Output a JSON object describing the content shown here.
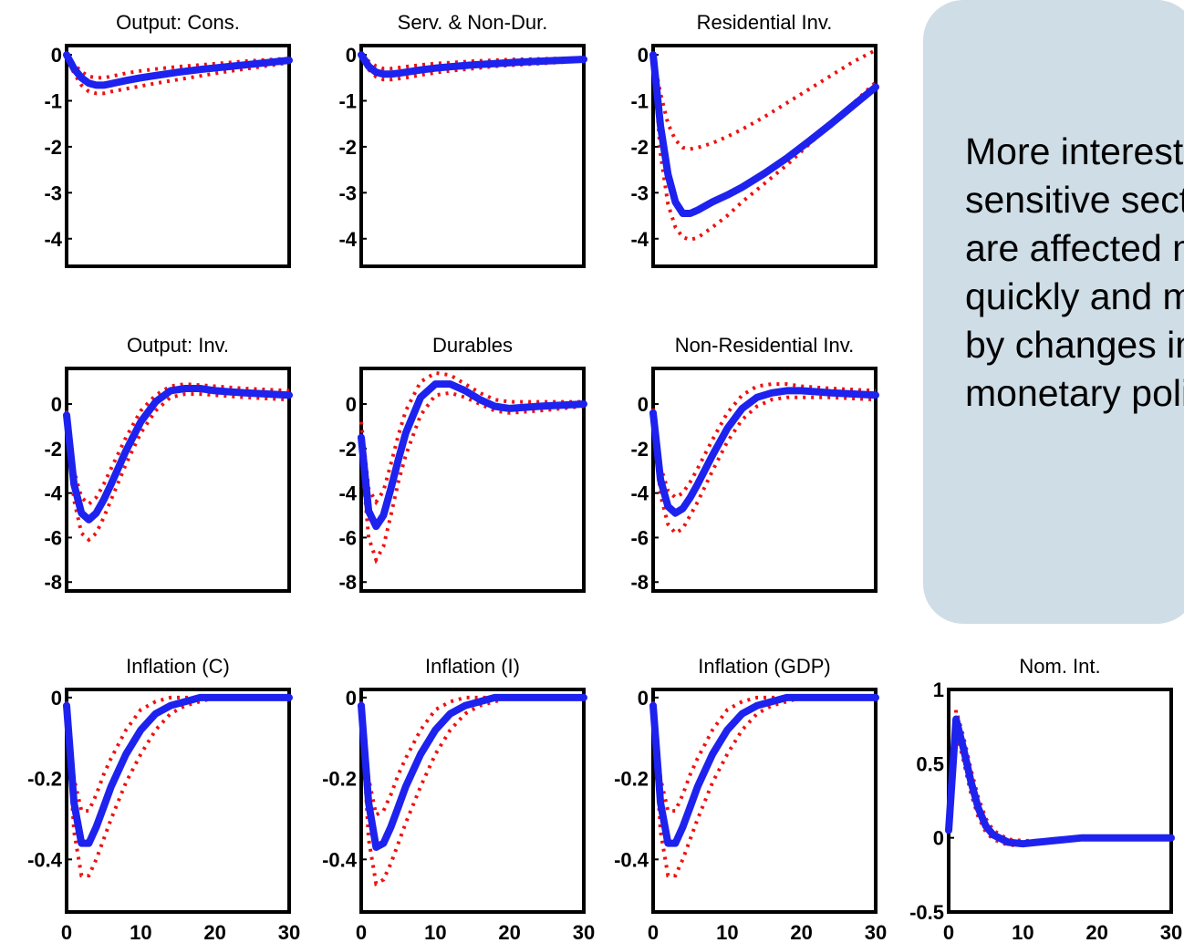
{
  "chart_data": [
    {
      "title": "Output: Cons.",
      "type": "line",
      "ylim": [
        -4.6,
        0.2
      ],
      "yticks": [
        0,
        -1,
        -2,
        -3,
        -4
      ],
      "ytick_labels": [
        "0",
        "-1",
        "-2",
        "-3",
        "-4"
      ],
      "xlim": [
        0,
        30
      ],
      "x": [
        0,
        1,
        2,
        3,
        4,
        5,
        6,
        8,
        10,
        12,
        15,
        18,
        21,
        24,
        27,
        30
      ],
      "series": [
        {
          "values": [
            0,
            -0.3,
            -0.5,
            -0.62,
            -0.66,
            -0.66,
            -0.63,
            -0.56,
            -0.5,
            -0.45,
            -0.38,
            -0.32,
            -0.27,
            -0.22,
            -0.17,
            -0.12
          ]
        },
        {
          "values": [
            0,
            -0.2,
            -0.37,
            -0.47,
            -0.5,
            -0.5,
            -0.47,
            -0.4,
            -0.35,
            -0.31,
            -0.26,
            -0.22,
            -0.18,
            -0.14,
            -0.11,
            -0.08
          ]
        },
        {
          "values": [
            0,
            -0.4,
            -0.66,
            -0.8,
            -0.84,
            -0.84,
            -0.8,
            -0.74,
            -0.68,
            -0.62,
            -0.54,
            -0.46,
            -0.38,
            -0.31,
            -0.24,
            -0.17
          ]
        }
      ]
    },
    {
      "title": "Serv. & Non-Dur.",
      "type": "line",
      "ylim": [
        -4.6,
        0.2
      ],
      "yticks": [
        0,
        -1,
        -2,
        -3,
        -4
      ],
      "ytick_labels": [
        "0",
        "-1",
        "-2",
        "-3",
        "-4"
      ],
      "xlim": [
        0,
        30
      ],
      "x": [
        0,
        1,
        2,
        3,
        4,
        5,
        6,
        8,
        10,
        12,
        15,
        18,
        21,
        24,
        27,
        30
      ],
      "series": [
        {
          "values": [
            0,
            -0.25,
            -0.38,
            -0.42,
            -0.42,
            -0.4,
            -0.38,
            -0.33,
            -0.29,
            -0.26,
            -0.22,
            -0.19,
            -0.16,
            -0.14,
            -0.12,
            -0.1
          ]
        },
        {
          "values": [
            0,
            -0.14,
            -0.25,
            -0.3,
            -0.3,
            -0.28,
            -0.26,
            -0.22,
            -0.19,
            -0.17,
            -0.14,
            -0.12,
            -0.1,
            -0.09,
            -0.08,
            -0.07
          ]
        },
        {
          "values": [
            0,
            -0.32,
            -0.48,
            -0.54,
            -0.54,
            -0.52,
            -0.5,
            -0.44,
            -0.39,
            -0.35,
            -0.3,
            -0.25,
            -0.22,
            -0.19,
            -0.16,
            -0.13
          ]
        }
      ]
    },
    {
      "title": "Residential Inv.",
      "type": "line",
      "ylim": [
        -4.6,
        0.2
      ],
      "yticks": [
        0,
        -1,
        -2,
        -3,
        -4
      ],
      "ytick_labels": [
        "0",
        "-1",
        "-2",
        "-3",
        "-4"
      ],
      "xlim": [
        0,
        30
      ],
      "x": [
        0,
        1,
        2,
        3,
        4,
        5,
        6,
        8,
        10,
        12,
        15,
        18,
        21,
        24,
        27,
        30
      ],
      "series": [
        {
          "values": [
            0,
            -1.55,
            -2.6,
            -3.2,
            -3.45,
            -3.45,
            -3.38,
            -3.2,
            -3.05,
            -2.88,
            -2.58,
            -2.25,
            -1.88,
            -1.5,
            -1.1,
            -0.7
          ]
        },
        {
          "values": [
            0,
            -0.85,
            -1.5,
            -1.85,
            -2.02,
            -2.05,
            -2.02,
            -1.92,
            -1.78,
            -1.62,
            -1.35,
            -1.05,
            -0.75,
            -0.45,
            -0.15,
            0.1
          ]
        },
        {
          "values": [
            0,
            -2.15,
            -3.25,
            -3.75,
            -3.97,
            -4.02,
            -3.98,
            -3.75,
            -3.5,
            -3.2,
            -2.8,
            -2.4,
            -1.95,
            -1.5,
            -1.05,
            -0.6
          ]
        }
      ]
    },
    {
      "title": "Output: Inv.",
      "type": "line",
      "ylim": [
        -8.4,
        1.6
      ],
      "yticks": [
        0,
        -2,
        -4,
        -6,
        -8
      ],
      "ytick_labels": [
        "0",
        "-2",
        "-4",
        "-6",
        "-8"
      ],
      "xlim": [
        0,
        30
      ],
      "x": [
        0,
        1,
        2,
        3,
        4,
        5,
        6,
        8,
        10,
        12,
        14,
        16,
        18,
        20,
        24,
        30
      ],
      "series": [
        {
          "values": [
            -0.5,
            -3.6,
            -4.9,
            -5.2,
            -4.9,
            -4.3,
            -3.6,
            -2.1,
            -0.8,
            0.1,
            0.6,
            0.7,
            0.7,
            0.6,
            0.5,
            0.4
          ]
        },
        {
          "values": [
            -0.3,
            -3.0,
            -4.2,
            -4.5,
            -4.2,
            -3.6,
            -2.9,
            -1.5,
            -0.3,
            0.4,
            0.8,
            0.9,
            0.85,
            0.8,
            0.7,
            0.6
          ]
        },
        {
          "values": [
            -0.7,
            -4.3,
            -5.8,
            -6.1,
            -5.8,
            -5.1,
            -4.3,
            -2.7,
            -1.3,
            -0.3,
            0.3,
            0.45,
            0.45,
            0.4,
            0.3,
            0.2
          ]
        }
      ]
    },
    {
      "title": "Durables",
      "type": "line",
      "ylim": [
        -8.4,
        1.6
      ],
      "yticks": [
        0,
        -2,
        -4,
        -6,
        -8
      ],
      "ytick_labels": [
        "0",
        "-2",
        "-4",
        "-6",
        "-8"
      ],
      "xlim": [
        0,
        30
      ],
      "x": [
        0,
        1,
        2,
        3,
        4,
        5,
        6,
        8,
        10,
        12,
        14,
        16,
        18,
        20,
        24,
        30
      ],
      "series": [
        {
          "values": [
            -1.5,
            -4.8,
            -5.5,
            -5.0,
            -3.8,
            -2.5,
            -1.3,
            0.3,
            0.9,
            0.9,
            0.6,
            0.2,
            -0.1,
            -0.2,
            -0.1,
            0.0
          ]
        },
        {
          "values": [
            -0.8,
            -3.8,
            -4.4,
            -3.9,
            -2.7,
            -1.4,
            -0.3,
            1.0,
            1.4,
            1.3,
            0.9,
            0.5,
            0.2,
            0.1,
            0.1,
            0.1
          ]
        },
        {
          "values": [
            -2.2,
            -6.0,
            -7.0,
            -6.4,
            -5.0,
            -3.5,
            -2.3,
            -0.5,
            0.4,
            0.5,
            0.3,
            0.0,
            -0.3,
            -0.4,
            -0.3,
            -0.1
          ]
        }
      ]
    },
    {
      "title": "Non-Residential Inv.",
      "type": "line",
      "ylim": [
        -8.4,
        1.6
      ],
      "yticks": [
        0,
        -2,
        -4,
        -6,
        -8
      ],
      "ytick_labels": [
        "0",
        "-2",
        "-4",
        "-6",
        "-8"
      ],
      "xlim": [
        0,
        30
      ],
      "x": [
        0,
        1,
        2,
        3,
        4,
        5,
        6,
        8,
        10,
        12,
        14,
        16,
        18,
        20,
        24,
        30
      ],
      "series": [
        {
          "values": [
            -0.4,
            -3.4,
            -4.6,
            -4.9,
            -4.7,
            -4.2,
            -3.6,
            -2.3,
            -1.1,
            -0.2,
            0.3,
            0.5,
            0.6,
            0.6,
            0.5,
            0.4
          ]
        },
        {
          "values": [
            -0.2,
            -2.8,
            -3.9,
            -4.2,
            -4.0,
            -3.5,
            -2.9,
            -1.6,
            -0.4,
            0.4,
            0.8,
            0.9,
            0.9,
            0.8,
            0.7,
            0.6
          ]
        },
        {
          "values": [
            -0.6,
            -4.1,
            -5.4,
            -5.8,
            -5.6,
            -5.0,
            -4.4,
            -3.0,
            -1.7,
            -0.7,
            -0.1,
            0.2,
            0.3,
            0.3,
            0.3,
            0.2
          ]
        }
      ]
    },
    {
      "title": "Inflation (C)",
      "type": "line",
      "ylim": [
        -0.53,
        0.02
      ],
      "yticks": [
        0,
        -0.2,
        -0.4
      ],
      "ytick_labels": [
        "0",
        "-0.2",
        "-0.4"
      ],
      "xlim": [
        0,
        30
      ],
      "x": [
        0,
        1,
        2,
        3,
        4,
        5,
        6,
        8,
        10,
        12,
        14,
        16,
        18,
        20,
        24,
        30
      ],
      "series": [
        {
          "values": [
            -0.02,
            -0.26,
            -0.36,
            -0.36,
            -0.32,
            -0.27,
            -0.22,
            -0.14,
            -0.08,
            -0.04,
            -0.02,
            -0.01,
            0,
            0,
            0,
            0
          ]
        },
        {
          "values": [
            -0.01,
            -0.2,
            -0.28,
            -0.28,
            -0.24,
            -0.19,
            -0.15,
            -0.08,
            -0.03,
            -0.01,
            0,
            0,
            0,
            0,
            0,
            0
          ]
        },
        {
          "values": [
            -0.03,
            -0.33,
            -0.44,
            -0.44,
            -0.4,
            -0.35,
            -0.3,
            -0.21,
            -0.14,
            -0.08,
            -0.04,
            -0.02,
            -0.01,
            0,
            0,
            0
          ]
        }
      ]
    },
    {
      "title": "Inflation (I)",
      "type": "line",
      "ylim": [
        -0.53,
        0.02
      ],
      "yticks": [
        0,
        -0.2,
        -0.4
      ],
      "ytick_labels": [
        "0",
        "-0.2",
        "-0.4"
      ],
      "xlim": [
        0,
        30
      ],
      "x": [
        0,
        1,
        2,
        3,
        4,
        5,
        6,
        8,
        10,
        12,
        14,
        16,
        18,
        20,
        24,
        30
      ],
      "series": [
        {
          "values": [
            -0.02,
            -0.26,
            -0.37,
            -0.36,
            -0.32,
            -0.27,
            -0.22,
            -0.14,
            -0.08,
            -0.04,
            -0.02,
            -0.01,
            0,
            0,
            0,
            0
          ]
        },
        {
          "values": [
            -0.01,
            -0.2,
            -0.29,
            -0.28,
            -0.24,
            -0.19,
            -0.15,
            -0.08,
            -0.03,
            -0.01,
            0,
            0,
            0,
            0,
            0,
            0
          ]
        },
        {
          "values": [
            -0.03,
            -0.35,
            -0.46,
            -0.45,
            -0.41,
            -0.36,
            -0.31,
            -0.22,
            -0.14,
            -0.08,
            -0.04,
            -0.02,
            -0.01,
            0,
            0,
            0
          ]
        }
      ]
    },
    {
      "title": "Inflation (GDP)",
      "type": "line",
      "ylim": [
        -0.53,
        0.02
      ],
      "yticks": [
        0,
        -0.2,
        -0.4
      ],
      "ytick_labels": [
        "0",
        "-0.2",
        "-0.4"
      ],
      "xlim": [
        0,
        30
      ],
      "x": [
        0,
        1,
        2,
        3,
        4,
        5,
        6,
        8,
        10,
        12,
        14,
        16,
        18,
        20,
        24,
        30
      ],
      "series": [
        {
          "values": [
            -0.02,
            -0.26,
            -0.36,
            -0.36,
            -0.32,
            -0.27,
            -0.22,
            -0.14,
            -0.08,
            -0.04,
            -0.02,
            -0.01,
            0,
            0,
            0,
            0
          ]
        },
        {
          "values": [
            -0.01,
            -0.2,
            -0.28,
            -0.28,
            -0.24,
            -0.19,
            -0.15,
            -0.08,
            -0.03,
            -0.01,
            0,
            0,
            0,
            0,
            0,
            0
          ]
        },
        {
          "values": [
            -0.03,
            -0.33,
            -0.44,
            -0.44,
            -0.4,
            -0.35,
            -0.3,
            -0.21,
            -0.14,
            -0.08,
            -0.04,
            -0.02,
            -0.01,
            0,
            0,
            0
          ]
        }
      ]
    },
    {
      "title": "Nom. Int.",
      "type": "line",
      "ylim": [
        -0.5,
        1.0
      ],
      "yticks": [
        1,
        0.5,
        0,
        -0.5
      ],
      "ytick_labels": [
        "1",
        "0.5",
        "0",
        "-0.5"
      ],
      "xlim": [
        0,
        30
      ],
      "x": [
        0,
        1,
        2,
        3,
        4,
        5,
        6,
        8,
        10,
        12,
        14,
        16,
        18,
        20,
        24,
        30
      ],
      "series": [
        {
          "values": [
            0.05,
            0.8,
            0.6,
            0.38,
            0.2,
            0.08,
            0.02,
            -0.03,
            -0.04,
            -0.03,
            -0.02,
            -0.01,
            0,
            0,
            0,
            0
          ]
        },
        {
          "values": [
            0.03,
            0.72,
            0.52,
            0.3,
            0.14,
            0.04,
            -0.01,
            -0.05,
            -0.05,
            -0.04,
            -0.03,
            -0.02,
            -0.01,
            0,
            0,
            0
          ]
        },
        {
          "values": [
            0.07,
            0.86,
            0.68,
            0.46,
            0.27,
            0.13,
            0.05,
            -0.01,
            -0.02,
            -0.02,
            -0.01,
            0,
            0,
            0,
            0,
            0
          ]
        }
      ]
    }
  ],
  "x_axis": {
    "tick_values": [
      0,
      10,
      20,
      30
    ],
    "tick_labels": [
      "0",
      "10",
      "20",
      "30"
    ]
  },
  "callout": {
    "lines": [
      "More interest",
      "sensitive sectors",
      "are affected more",
      "quickly and more",
      "by changes in",
      "monetary policy"
    ]
  },
  "colors": {
    "median": "#1e22ee",
    "band": "#ee1111",
    "callout_bg": "#cedde6"
  }
}
